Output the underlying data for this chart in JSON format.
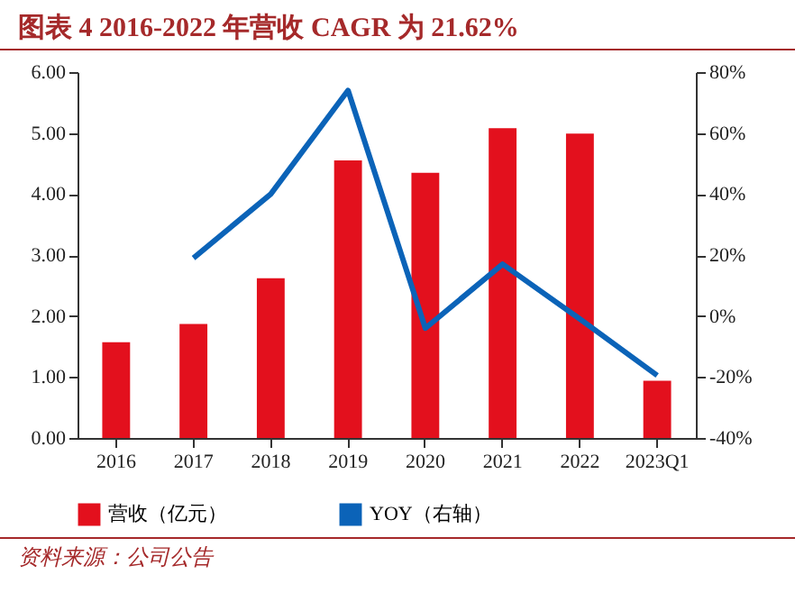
{
  "chart_data": {
    "type": "bar",
    "title": "图表 4   2016-2022 年营收 CAGR 为 21.62%",
    "categories": [
      "2016",
      "2017",
      "2018",
      "2019",
      "2020",
      "2021",
      "2022",
      "2023Q1"
    ],
    "series": [
      {
        "name": "营收（亿元）",
        "color": "#e3101d",
        "values": [
          1.57,
          1.87,
          2.62,
          4.55,
          4.35,
          5.08,
          4.99,
          0.94
        ]
      },
      {
        "name": "YOY（右轴）",
        "type": "line",
        "axis": "y2",
        "color": "#0b63b8",
        "values": [
          null,
          19,
          40,
          74,
          -4,
          17,
          -1,
          -19.5
        ]
      }
    ],
    "ylim": [
      0,
      6
    ],
    "yticks": [
      {
        "value": 0,
        "label": "0.00"
      },
      {
        "value": 1,
        "label": "1.00"
      },
      {
        "value": 2,
        "label": "2.00"
      },
      {
        "value": 3,
        "label": "3.00"
      },
      {
        "value": 4,
        "label": "4.00"
      },
      {
        "value": 5,
        "label": "5.00"
      },
      {
        "value": 6,
        "label": "6.00"
      }
    ],
    "y2lim": [
      -40,
      80
    ],
    "y2ticks": [
      {
        "value": -40,
        "label": "-40%"
      },
      {
        "value": -20,
        "label": "-20%"
      },
      {
        "value": 0,
        "label": "0%"
      },
      {
        "value": 20,
        "label": "20%"
      },
      {
        "value": 40,
        "label": "40%"
      },
      {
        "value": 60,
        "label": "60%"
      },
      {
        "value": 80,
        "label": "80%"
      }
    ],
    "grid": false,
    "legend": "bottom",
    "annotations": [
      "资料来源：公司公告"
    ]
  }
}
